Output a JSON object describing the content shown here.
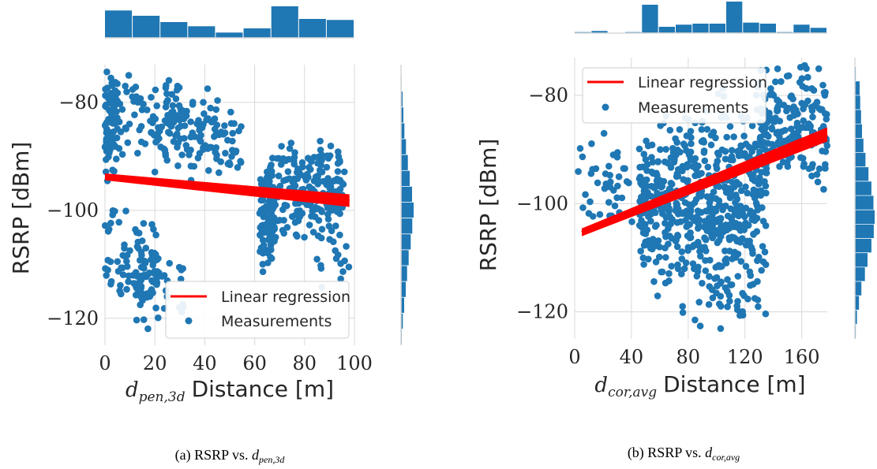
{
  "colors": {
    "points": "#1f77b4",
    "regression": "#ff0000",
    "grid": "#d9d9d9",
    "background": "#ffffff"
  },
  "chart_data": [
    {
      "type": "scatter",
      "panel": "(a)",
      "caption": {
        "prefix": "(a) RSRP vs. ",
        "var": "d",
        "sub": "pen,3d"
      },
      "xlabel": {
        "var": "d",
        "sub": "pen,3d",
        "text": "Distance [m]"
      },
      "ylabel": "RSRP [dBm]",
      "xlim": [
        0,
        100
      ],
      "ylim": [
        -125,
        -73
      ],
      "xticks": [
        0,
        20,
        40,
        60,
        80,
        100
      ],
      "yticks": [
        -80,
        -100,
        -120
      ],
      "ytick_labels": [
        "−80",
        "−100",
        "−120"
      ],
      "grid": true,
      "legend": {
        "placement": "lower-right",
        "entries": [
          "Linear regression",
          "Measurements"
        ]
      },
      "regression": {
        "x": [
          0,
          98
        ],
        "y": [
          -93.8,
          -98.2
        ]
      },
      "series": [
        {
          "name": "Measurements",
          "clusters": [
            {
              "x": [
                0,
                5
              ],
              "y": [
                -95,
                -73
              ],
              "n": 70
            },
            {
              "x": [
                2,
                30
              ],
              "y": [
                -92,
                -73
              ],
              "n": 80
            },
            {
              "x": [
                20,
                55
              ],
              "y": [
                -95,
                -77
              ],
              "n": 110
            },
            {
              "x": [
                0,
                15
              ],
              "y": [
                -120,
                -98
              ],
              "n": 45
            },
            {
              "x": [
                12,
                22
              ],
              "y": [
                -125,
                -100
              ],
              "n": 70
            },
            {
              "x": [
                22,
                32
              ],
              "y": [
                -122,
                -106
              ],
              "n": 15
            },
            {
              "x": [
                62,
                68
              ],
              "y": [
                -112,
                -92
              ],
              "n": 90
            },
            {
              "x": [
                66,
                96
              ],
              "y": [
                -106,
                -86
              ],
              "n": 190
            },
            {
              "x": [
                84,
                98
              ],
              "y": [
                -116,
                -92
              ],
              "n": 30
            }
          ]
        }
      ],
      "top_histogram": [
        26,
        21,
        15,
        11,
        5,
        9,
        30,
        18,
        17
      ],
      "right_histogram": [
        0.2,
        0.6,
        0.9,
        1.3,
        1.9,
        2.6,
        3.3,
        4.2,
        4.8,
        4.3,
        3.7,
        2.9,
        2.3,
        1.8,
        1.2,
        0.7,
        0.3
      ]
    },
    {
      "type": "scatter",
      "panel": "(b)",
      "caption": {
        "prefix": "(b) RSRP vs. ",
        "var": "d",
        "sub": "cor,avg"
      },
      "xlabel": {
        "var": "d",
        "sub": "cor,avg",
        "text": "Distance [m]"
      },
      "ylabel": "RSRP [dBm]",
      "xlim": [
        0,
        178
      ],
      "ylim": [
        -125,
        -73
      ],
      "xticks": [
        0,
        40,
        80,
        120,
        160
      ],
      "yticks": [
        -80,
        -100,
        -120
      ],
      "ytick_labels": [
        "−80",
        "−100",
        "−120"
      ],
      "grid": true,
      "legend": {
        "placement": "upper-left",
        "entries": [
          "Linear regression",
          "Measurements"
        ]
      },
      "regression": {
        "x": [
          5,
          178
        ],
        "y": [
          -105.3,
          -87.2
        ]
      },
      "series": [
        {
          "name": "Measurements",
          "clusters": [
            {
              "x": [
                2,
                45
              ],
              "y": [
                -105,
                -86
              ],
              "n": 40
            },
            {
              "x": [
                45,
                58
              ],
              "y": [
                -115,
                -87
              ],
              "n": 90
            },
            {
              "x": [
                58,
                100
              ],
              "y": [
                -118,
                -82
              ],
              "n": 260
            },
            {
              "x": [
                100,
                135
              ],
              "y": [
                -122,
                -83
              ],
              "n": 230
            },
            {
              "x": [
                75,
                110
              ],
              "y": [
                -125,
                -112
              ],
              "n": 20
            },
            {
              "x": [
                130,
                178
              ],
              "y": [
                -98,
                -73
              ],
              "n": 150
            },
            {
              "x": [
                100,
                178
              ],
              "y": [
                -95,
                -75
              ],
              "n": 50
            }
          ]
        }
      ],
      "top_histogram": [
        1,
        2,
        0,
        1,
        27,
        6,
        8,
        9,
        9,
        30,
        10,
        9,
        1,
        8,
        5
      ],
      "right_histogram": [
        0.3,
        1.6,
        1.8,
        2.1,
        2.4,
        2.9,
        3.6,
        4.6,
        5.6,
        6.3,
        6.7,
        6.4,
        5.6,
        4.3,
        3.4,
        2.2,
        1.4,
        0.7,
        0.3
      ]
    }
  ]
}
